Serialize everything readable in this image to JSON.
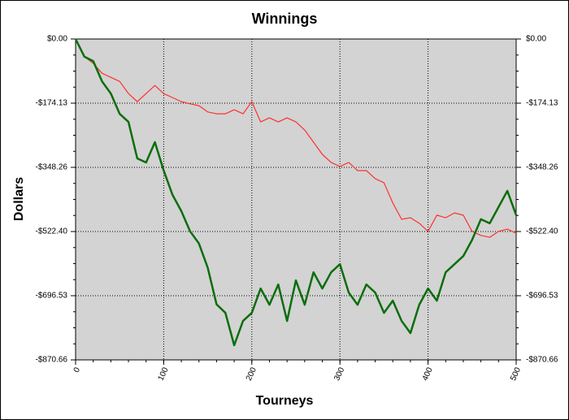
{
  "chart_data": {
    "type": "line",
    "title": "Winnings",
    "x_label": "Tourneys",
    "y_label": "Dollars",
    "x": [
      0,
      10,
      20,
      30,
      40,
      50,
      60,
      70,
      80,
      90,
      100,
      110,
      120,
      130,
      140,
      150,
      160,
      170,
      180,
      190,
      200,
      210,
      220,
      230,
      240,
      250,
      260,
      270,
      280,
      290,
      300,
      310,
      320,
      330,
      340,
      350,
      360,
      370,
      380,
      390,
      400,
      410,
      420,
      430,
      440,
      450,
      460,
      470,
      480,
      490,
      500
    ],
    "series": [
      {
        "color": "#ff3030",
        "values": [
          0,
          -48,
          -66,
          -93,
          -104,
          -115,
          -148,
          -170,
          -148,
          -126,
          -148,
          -159,
          -170,
          -176,
          -181,
          -198,
          -203,
          -203,
          -192,
          -203,
          -170,
          -225,
          -214,
          -225,
          -214,
          -225,
          -247,
          -280,
          -313,
          -335,
          -346,
          -335,
          -357,
          -357,
          -379,
          -390,
          -445,
          -489,
          -485,
          -500,
          -522,
          -478,
          -485,
          -472,
          -478,
          -522,
          -533,
          -538,
          -522,
          -516,
          -527
        ]
      },
      {
        "color": "#0a6e0a",
        "values": [
          0,
          -48,
          -60,
          -115,
          -148,
          -203,
          -225,
          -324,
          -335,
          -280,
          -357,
          -423,
          -467,
          -522,
          -555,
          -621,
          -720,
          -743,
          -831,
          -765,
          -743,
          -677,
          -721,
          -666,
          -765,
          -655,
          -721,
          -633,
          -677,
          -633,
          -611,
          -688,
          -721,
          -666,
          -688,
          -743,
          -710,
          -765,
          -798,
          -721,
          -677,
          -710,
          -633,
          -611,
          -589,
          -545,
          -489,
          -500,
          -456,
          -412,
          -478
        ]
      }
    ],
    "xlim": [
      0,
      500
    ],
    "xticks": [
      0,
      100,
      200,
      300,
      400,
      500
    ],
    "ylim": [
      -870.66,
      0
    ],
    "yticks": [
      {
        "value": 0,
        "label": "$0.00"
      },
      {
        "value": -174.13,
        "label": "-$174.13"
      },
      {
        "value": -348.26,
        "label": "-$348.26"
      },
      {
        "value": -522.4,
        "label": "-$522.40"
      },
      {
        "value": -696.53,
        "label": "-$696.53"
      },
      {
        "value": -870.66,
        "label": "-$870.66"
      }
    ],
    "grid": true
  }
}
